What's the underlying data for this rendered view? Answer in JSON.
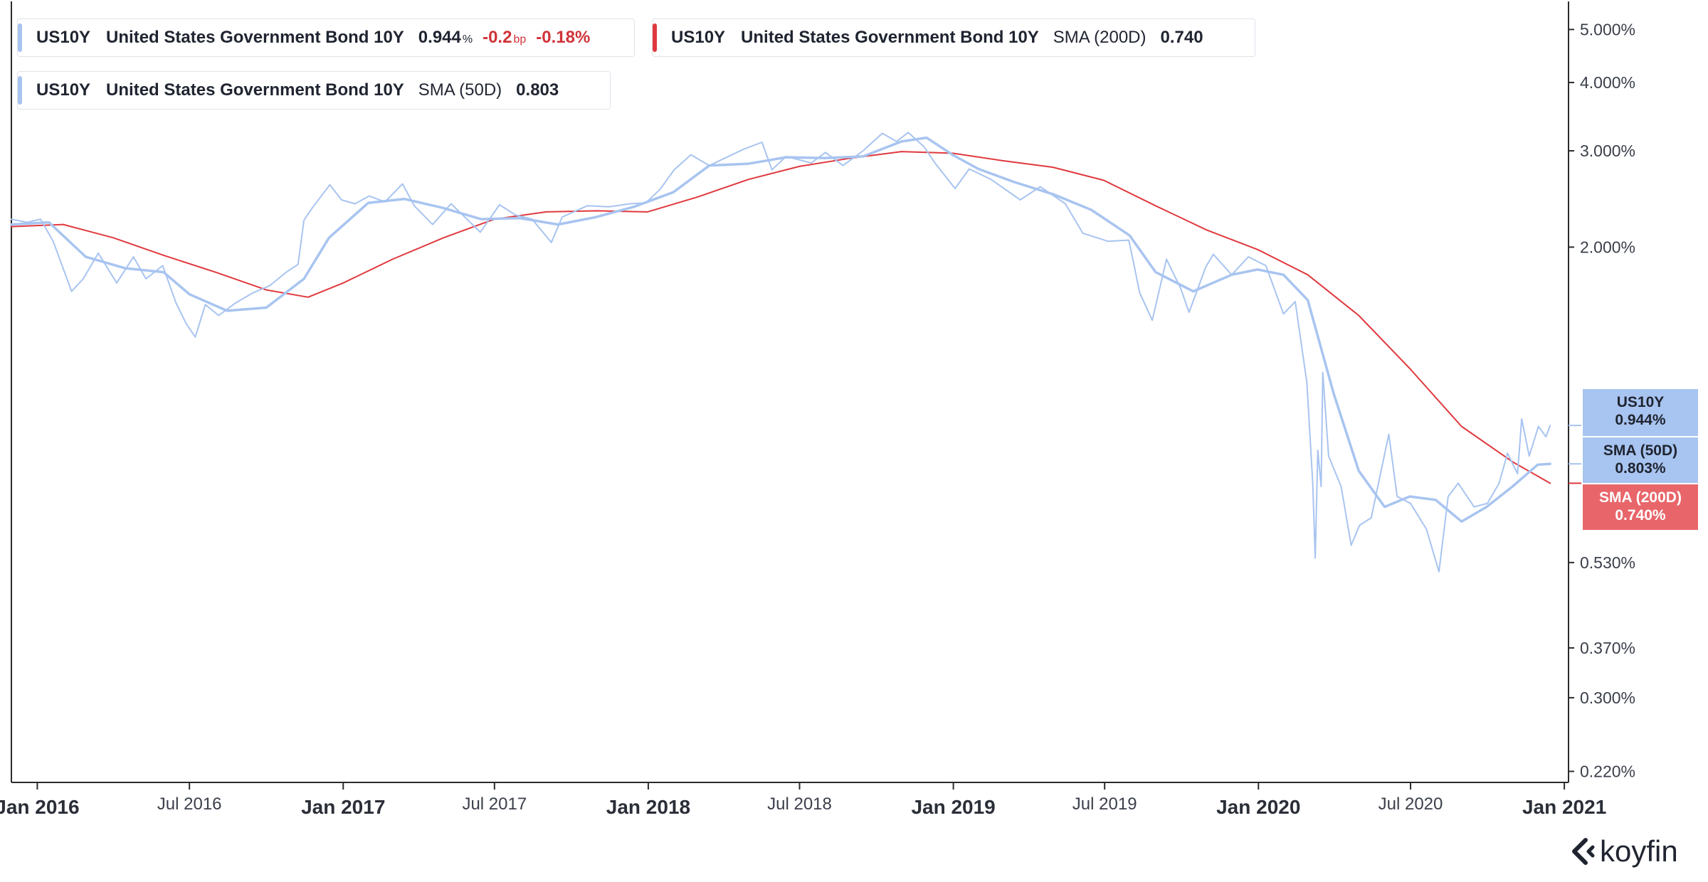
{
  "legend": [
    {
      "ticker": "US10Y",
      "name": "United States Government Bond 10Y",
      "indicator": "",
      "value": "0.944",
      "unit": "%",
      "change_bp": "-0.2",
      "change_bp_unit": "bp",
      "change_pct": "-0.18%",
      "color": "#a8c4f0"
    },
    {
      "ticker": "US10Y",
      "name": "United States Government Bond 10Y",
      "indicator": "SMA (200D)",
      "value": "0.740",
      "color": "#e0393e"
    },
    {
      "ticker": "US10Y",
      "name": "United States Government Bond 10Y",
      "indicator": "SMA (50D)",
      "value": "0.803",
      "color": "#a8c4f0"
    }
  ],
  "tags": [
    {
      "line1": "US10Y",
      "line2": "0.944%",
      "bg": "#a8c4f0",
      "fg": "#1f2430"
    },
    {
      "line1": "SMA (50D)",
      "line2": "0.803%",
      "bg": "#a8c4f0",
      "fg": "#1f2430"
    },
    {
      "line1": "SMA (200D)",
      "line2": "0.740%",
      "bg": "#e8666a",
      "fg": "#ffffff"
    }
  ],
  "logo": {
    "text": "koyfin",
    "icon": "koyfin-chevron-logo-icon"
  },
  "colors": {
    "price": "#a8c4f0",
    "sma50": "#a8c4f0",
    "sma200": "#e0393e",
    "axis": "#2b2b2b"
  },
  "chart_data": {
    "type": "line",
    "title": "",
    "xlabel": "",
    "ylabel": "",
    "y_scale": "log",
    "ylim": [
      0.21,
      5.3
    ],
    "xlim": [
      "2015-12-01",
      "2021-01-06"
    ],
    "grid": false,
    "legend_position": "top-left",
    "y_ticks": [
      {
        "value": 5.0,
        "label": "5.000%"
      },
      {
        "value": 4.0,
        "label": "4.000%"
      },
      {
        "value": 3.0,
        "label": "3.000%"
      },
      {
        "value": 2.0,
        "label": "2.000%"
      },
      {
        "value": 0.53,
        "label": "0.530%"
      },
      {
        "value": 0.37,
        "label": "0.370%"
      },
      {
        "value": 0.3,
        "label": "0.300%"
      },
      {
        "value": 0.22,
        "label": "0.220%"
      }
    ],
    "x_ticks": [
      {
        "date": "2016-01-01",
        "label": "Jan 2016",
        "bold": true
      },
      {
        "date": "2016-07-01",
        "label": "Jul 2016",
        "bold": false
      },
      {
        "date": "2017-01-01",
        "label": "Jan 2017",
        "bold": true
      },
      {
        "date": "2017-07-01",
        "label": "Jul 2017",
        "bold": false
      },
      {
        "date": "2018-01-01",
        "label": "Jan 2018",
        "bold": true
      },
      {
        "date": "2018-07-01",
        "label": "Jul 2018",
        "bold": false
      },
      {
        "date": "2019-01-01",
        "label": "Jan 2019",
        "bold": true
      },
      {
        "date": "2019-07-01",
        "label": "Jul 2019",
        "bold": false
      },
      {
        "date": "2020-01-01",
        "label": "Jan 2020",
        "bold": true
      },
      {
        "date": "2020-07-01",
        "label": "Jul 2020",
        "bold": false
      },
      {
        "date": "2021-01-01",
        "label": "Jan 2021",
        "bold": true
      }
    ],
    "series": [
      {
        "name": "US10Y",
        "color": "#a8c4f0",
        "width": 2,
        "points": [
          [
            "2015-12-01",
            2.25
          ],
          [
            "2015-12-20",
            2.22
          ],
          [
            "2016-01-05",
            2.25
          ],
          [
            "2016-01-20",
            2.05
          ],
          [
            "2016-02-11",
            1.66
          ],
          [
            "2016-02-25",
            1.75
          ],
          [
            "2016-03-14",
            1.95
          ],
          [
            "2016-04-05",
            1.72
          ],
          [
            "2016-04-25",
            1.92
          ],
          [
            "2016-05-10",
            1.75
          ],
          [
            "2016-05-30",
            1.85
          ],
          [
            "2016-06-15",
            1.58
          ],
          [
            "2016-06-27",
            1.45
          ],
          [
            "2016-07-08",
            1.37
          ],
          [
            "2016-07-20",
            1.57
          ],
          [
            "2016-08-05",
            1.5
          ],
          [
            "2016-08-25",
            1.58
          ],
          [
            "2016-09-15",
            1.65
          ],
          [
            "2016-10-05",
            1.7
          ],
          [
            "2016-10-25",
            1.8
          ],
          [
            "2016-11-08",
            1.86
          ],
          [
            "2016-11-15",
            2.24
          ],
          [
            "2016-11-25",
            2.36
          ],
          [
            "2016-12-16",
            2.6
          ],
          [
            "2016-12-30",
            2.44
          ],
          [
            "2017-01-15",
            2.4
          ],
          [
            "2017-02-01",
            2.48
          ],
          [
            "2017-02-20",
            2.42
          ],
          [
            "2017-03-13",
            2.61
          ],
          [
            "2017-03-27",
            2.38
          ],
          [
            "2017-04-18",
            2.2
          ],
          [
            "2017-05-10",
            2.4
          ],
          [
            "2017-06-14",
            2.13
          ],
          [
            "2017-07-07",
            2.39
          ],
          [
            "2017-07-26",
            2.29
          ],
          [
            "2017-08-15",
            2.25
          ],
          [
            "2017-09-07",
            2.04
          ],
          [
            "2017-09-20",
            2.27
          ],
          [
            "2017-10-20",
            2.38
          ],
          [
            "2017-11-15",
            2.37
          ],
          [
            "2017-12-10",
            2.4
          ],
          [
            "2017-12-29",
            2.41
          ],
          [
            "2018-01-15",
            2.55
          ],
          [
            "2018-02-01",
            2.77
          ],
          [
            "2018-02-21",
            2.95
          ],
          [
            "2018-03-15",
            2.82
          ],
          [
            "2018-04-25",
            3.02
          ],
          [
            "2018-05-17",
            3.11
          ],
          [
            "2018-05-29",
            2.77
          ],
          [
            "2018-06-15",
            2.93
          ],
          [
            "2018-07-15",
            2.85
          ],
          [
            "2018-08-01",
            2.98
          ],
          [
            "2018-08-22",
            2.82
          ],
          [
            "2018-09-15",
            3.0
          ],
          [
            "2018-10-08",
            3.23
          ],
          [
            "2018-10-25",
            3.12
          ],
          [
            "2018-11-08",
            3.24
          ],
          [
            "2018-11-27",
            3.05
          ],
          [
            "2018-12-10",
            2.85
          ],
          [
            "2019-01-03",
            2.56
          ],
          [
            "2019-01-20",
            2.78
          ],
          [
            "2019-02-15",
            2.66
          ],
          [
            "2019-03-22",
            2.44
          ],
          [
            "2019-04-15",
            2.58
          ],
          [
            "2019-05-15",
            2.4
          ],
          [
            "2019-06-05",
            2.12
          ],
          [
            "2019-07-05",
            2.05
          ],
          [
            "2019-07-30",
            2.06
          ],
          [
            "2019-08-12",
            1.65
          ],
          [
            "2019-08-27",
            1.47
          ],
          [
            "2019-09-13",
            1.9
          ],
          [
            "2019-09-30",
            1.68
          ],
          [
            "2019-10-10",
            1.52
          ],
          [
            "2019-10-30",
            1.84
          ],
          [
            "2019-11-08",
            1.94
          ],
          [
            "2019-11-30",
            1.78
          ],
          [
            "2019-12-20",
            1.92
          ],
          [
            "2020-01-10",
            1.85
          ],
          [
            "2020-01-31",
            1.51
          ],
          [
            "2020-02-14",
            1.59
          ],
          [
            "2020-02-28",
            1.13
          ],
          [
            "2020-03-06",
            0.74
          ],
          [
            "2020-03-09",
            0.54
          ],
          [
            "2020-03-12",
            0.85
          ],
          [
            "2020-03-16",
            0.73
          ],
          [
            "2020-03-18",
            1.18
          ],
          [
            "2020-03-25",
            0.83
          ],
          [
            "2020-04-09",
            0.73
          ],
          [
            "2020-04-21",
            0.57
          ],
          [
            "2020-05-01",
            0.62
          ],
          [
            "2020-05-15",
            0.64
          ],
          [
            "2020-06-05",
            0.91
          ],
          [
            "2020-06-15",
            0.7
          ],
          [
            "2020-07-01",
            0.68
          ],
          [
            "2020-07-20",
            0.61
          ],
          [
            "2020-08-04",
            0.51
          ],
          [
            "2020-08-15",
            0.7
          ],
          [
            "2020-08-27",
            0.74
          ],
          [
            "2020-09-15",
            0.67
          ],
          [
            "2020-10-01",
            0.68
          ],
          [
            "2020-10-15",
            0.74
          ],
          [
            "2020-10-25",
            0.84
          ],
          [
            "2020-11-06",
            0.77
          ],
          [
            "2020-11-11",
            0.97
          ],
          [
            "2020-11-20",
            0.83
          ],
          [
            "2020-12-01",
            0.94
          ],
          [
            "2020-12-10",
            0.9
          ],
          [
            "2020-12-15",
            0.944
          ]
        ]
      },
      {
        "name": "SMA (50D)",
        "color": "#a8c4f0",
        "width": 3.5,
        "points": [
          [
            "2015-12-01",
            2.2
          ],
          [
            "2016-01-15",
            2.22
          ],
          [
            "2016-02-28",
            1.92
          ],
          [
            "2016-04-15",
            1.83
          ],
          [
            "2016-05-31",
            1.8
          ],
          [
            "2016-07-01",
            1.64
          ],
          [
            "2016-08-15",
            1.53
          ],
          [
            "2016-10-01",
            1.55
          ],
          [
            "2016-11-15",
            1.75
          ],
          [
            "2016-12-15",
            2.08
          ],
          [
            "2017-01-31",
            2.41
          ],
          [
            "2017-03-15",
            2.45
          ],
          [
            "2017-04-30",
            2.36
          ],
          [
            "2017-06-15",
            2.25
          ],
          [
            "2017-07-31",
            2.26
          ],
          [
            "2017-09-15",
            2.2
          ],
          [
            "2017-10-31",
            2.27
          ],
          [
            "2017-12-15",
            2.37
          ],
          [
            "2018-01-31",
            2.52
          ],
          [
            "2018-03-15",
            2.82
          ],
          [
            "2018-04-30",
            2.84
          ],
          [
            "2018-06-15",
            2.92
          ],
          [
            "2018-07-31",
            2.91
          ],
          [
            "2018-09-15",
            2.93
          ],
          [
            "2018-10-31",
            3.12
          ],
          [
            "2018-11-30",
            3.17
          ],
          [
            "2018-12-31",
            2.95
          ],
          [
            "2019-01-31",
            2.78
          ],
          [
            "2019-03-15",
            2.63
          ],
          [
            "2019-04-30",
            2.5
          ],
          [
            "2019-06-15",
            2.34
          ],
          [
            "2019-07-31",
            2.1
          ],
          [
            "2019-08-31",
            1.8
          ],
          [
            "2019-10-15",
            1.66
          ],
          [
            "2019-11-30",
            1.78
          ],
          [
            "2019-12-31",
            1.82
          ],
          [
            "2020-01-31",
            1.78
          ],
          [
            "2020-02-29",
            1.6
          ],
          [
            "2020-03-31",
            1.08
          ],
          [
            "2020-04-30",
            0.78
          ],
          [
            "2020-05-31",
            0.67
          ],
          [
            "2020-06-30",
            0.7
          ],
          [
            "2020-07-31",
            0.69
          ],
          [
            "2020-08-31",
            0.63
          ],
          [
            "2020-09-30",
            0.67
          ],
          [
            "2020-10-31",
            0.73
          ],
          [
            "2020-11-30",
            0.8
          ],
          [
            "2020-12-15",
            0.803
          ]
        ]
      },
      {
        "name": "SMA (200D)",
        "color": "#e0393e",
        "width": 2,
        "points": [
          [
            "2015-12-01",
            2.18
          ],
          [
            "2016-02-01",
            2.2
          ],
          [
            "2016-04-01",
            2.08
          ],
          [
            "2016-06-01",
            1.93
          ],
          [
            "2016-08-01",
            1.8
          ],
          [
            "2016-10-01",
            1.67
          ],
          [
            "2016-11-20",
            1.62
          ],
          [
            "2017-01-01",
            1.72
          ],
          [
            "2017-03-01",
            1.9
          ],
          [
            "2017-05-01",
            2.08
          ],
          [
            "2017-07-01",
            2.25
          ],
          [
            "2017-09-01",
            2.32
          ],
          [
            "2017-11-01",
            2.33
          ],
          [
            "2017-12-31",
            2.32
          ],
          [
            "2018-03-01",
            2.47
          ],
          [
            "2018-05-01",
            2.66
          ],
          [
            "2018-07-01",
            2.81
          ],
          [
            "2018-09-01",
            2.91
          ],
          [
            "2018-10-31",
            2.99
          ],
          [
            "2018-12-31",
            2.97
          ],
          [
            "2019-02-28",
            2.88
          ],
          [
            "2019-04-30",
            2.8
          ],
          [
            "2019-06-30",
            2.65
          ],
          [
            "2019-08-31",
            2.38
          ],
          [
            "2019-10-31",
            2.15
          ],
          [
            "2019-12-31",
            1.98
          ],
          [
            "2020-02-29",
            1.78
          ],
          [
            "2020-04-30",
            1.5
          ],
          [
            "2020-06-30",
            1.2
          ],
          [
            "2020-08-31",
            0.94
          ],
          [
            "2020-10-31",
            0.81
          ],
          [
            "2020-12-15",
            0.74
          ]
        ]
      }
    ]
  }
}
